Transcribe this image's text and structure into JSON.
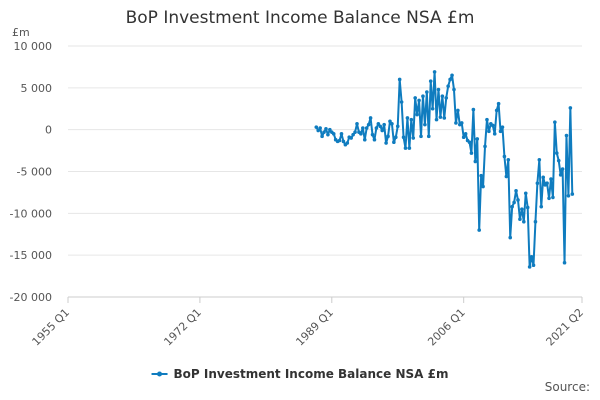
{
  "chart_data": {
    "type": "line",
    "title": "BoP Investment Income Balance NSA £m",
    "unit": "£m",
    "legend_position": "bottom",
    "ylim": [
      -20000,
      10000
    ],
    "y_ticks": [
      {
        "value": 10000,
        "label": "10 000"
      },
      {
        "value": 5000,
        "label": "5 000"
      },
      {
        "value": 0,
        "label": "0"
      },
      {
        "value": -5000,
        "label": "-5 000"
      },
      {
        "value": -10000,
        "label": "-10 000"
      },
      {
        "value": -15000,
        "label": "-15 000"
      },
      {
        "value": -20000,
        "label": "-20 000"
      }
    ],
    "xlim": [
      "1955 Q1",
      "2021 Q2"
    ],
    "x_ticks": [
      "1955 Q1",
      "1972 Q1",
      "1989 Q1",
      "2006 Q1",
      "2021 Q2"
    ],
    "color": "#0f7cbf",
    "series": [
      {
        "name": "BoP Investment Income Balance NSA £m",
        "points": [
          [
            "1987 Q1",
            300
          ],
          [
            "1987 Q2",
            -100
          ],
          [
            "1987 Q3",
            200
          ],
          [
            "1987 Q4",
            -800
          ],
          [
            "1988 Q1",
            -300
          ],
          [
            "1988 Q2",
            100
          ],
          [
            "1988 Q3",
            -600
          ],
          [
            "1988 Q4",
            0
          ],
          [
            "1989 Q1",
            -300
          ],
          [
            "1989 Q2",
            -500
          ],
          [
            "1989 Q3",
            -1200
          ],
          [
            "1989 Q4",
            -1400
          ],
          [
            "1990 Q1",
            -1300
          ],
          [
            "1990 Q2",
            -500
          ],
          [
            "1990 Q3",
            -1400
          ],
          [
            "1990 Q4",
            -1800
          ],
          [
            "1991 Q1",
            -1600
          ],
          [
            "1991 Q2",
            -900
          ],
          [
            "1991 Q3",
            -1000
          ],
          [
            "1991 Q4",
            -600
          ],
          [
            "1992 Q1",
            -300
          ],
          [
            "1992 Q2",
            700
          ],
          [
            "1992 Q3",
            -300
          ],
          [
            "1992 Q4",
            -500
          ],
          [
            "1993 Q1",
            200
          ],
          [
            "1993 Q2",
            -1200
          ],
          [
            "1993 Q3",
            200
          ],
          [
            "1993 Q4",
            600
          ],
          [
            "1994 Q1",
            1400
          ],
          [
            "1994 Q2",
            -600
          ],
          [
            "1994 Q3",
            -1200
          ],
          [
            "1994 Q4",
            200
          ],
          [
            "1995 Q1",
            700
          ],
          [
            "1995 Q2",
            400
          ],
          [
            "1995 Q3",
            -100
          ],
          [
            "1995 Q4",
            600
          ],
          [
            "1996 Q1",
            -1600
          ],
          [
            "1996 Q2",
            -800
          ],
          [
            "1996 Q3",
            1000
          ],
          [
            "1996 Q4",
            700
          ],
          [
            "1997 Q1",
            -1500
          ],
          [
            "1997 Q2",
            -900
          ],
          [
            "1997 Q3",
            400
          ],
          [
            "1997 Q4",
            6000
          ],
          [
            "1998 Q1",
            3300
          ],
          [
            "1998 Q2",
            -900
          ],
          [
            "1998 Q3",
            -2200
          ],
          [
            "1998 Q4",
            1400
          ],
          [
            "1999 Q1",
            -2200
          ],
          [
            "1999 Q2",
            1200
          ],
          [
            "1999 Q3",
            -1000
          ],
          [
            "1999 Q4",
            3800
          ],
          [
            "2000 Q1",
            1800
          ],
          [
            "2000 Q2",
            3500
          ],
          [
            "2000 Q3",
            -800
          ],
          [
            "2000 Q4",
            4000
          ],
          [
            "2001 Q1",
            600
          ],
          [
            "2001 Q2",
            4500
          ],
          [
            "2001 Q3",
            -800
          ],
          [
            "2001 Q4",
            5800
          ],
          [
            "2002 Q1",
            2500
          ],
          [
            "2002 Q2",
            6900
          ],
          [
            "2002 Q3",
            1200
          ],
          [
            "2002 Q4",
            4800
          ],
          [
            "2003 Q1",
            1500
          ],
          [
            "2003 Q2",
            4000
          ],
          [
            "2003 Q3",
            1400
          ],
          [
            "2003 Q4",
            3800
          ],
          [
            "2004 Q1",
            5200
          ],
          [
            "2004 Q2",
            6000
          ],
          [
            "2004 Q3",
            6500
          ],
          [
            "2004 Q4",
            4800
          ],
          [
            "2005 Q1",
            800
          ],
          [
            "2005 Q2",
            2300
          ],
          [
            "2005 Q3",
            600
          ],
          [
            "2005 Q4",
            800
          ],
          [
            "2006 Q1",
            -900
          ],
          [
            "2006 Q2",
            -500
          ],
          [
            "2006 Q3",
            -1300
          ],
          [
            "2006 Q4",
            -1500
          ],
          [
            "2007 Q1",
            -2800
          ],
          [
            "2007 Q2",
            2400
          ],
          [
            "2007 Q3",
            -3800
          ],
          [
            "2007 Q4",
            -1100
          ],
          [
            "2008 Q1",
            -12000
          ],
          [
            "2008 Q2",
            -5500
          ],
          [
            "2008 Q3",
            -6800
          ],
          [
            "2008 Q4",
            -2000
          ],
          [
            "2009 Q1",
            1200
          ],
          [
            "2009 Q2",
            -200
          ],
          [
            "2009 Q3",
            700
          ],
          [
            "2009 Q4",
            500
          ],
          [
            "2010 Q1",
            -500
          ],
          [
            "2010 Q2",
            2300
          ],
          [
            "2010 Q3",
            3100
          ],
          [
            "2010 Q4",
            -200
          ],
          [
            "2011 Q1",
            300
          ],
          [
            "2011 Q2",
            -3200
          ],
          [
            "2011 Q3",
            -5600
          ],
          [
            "2011 Q4",
            -3600
          ],
          [
            "2012 Q1",
            -12900
          ],
          [
            "2012 Q2",
            -9200
          ],
          [
            "2012 Q3",
            -8700
          ],
          [
            "2012 Q4",
            -7300
          ],
          [
            "2013 Q1",
            -8400
          ],
          [
            "2013 Q2",
            -10700
          ],
          [
            "2013 Q3",
            -9500
          ],
          [
            "2013 Q4",
            -11000
          ],
          [
            "2014 Q1",
            -7600
          ],
          [
            "2014 Q2",
            -9300
          ],
          [
            "2014 Q3",
            -16400
          ],
          [
            "2014 Q4",
            -15200
          ],
          [
            "2015 Q1",
            -16200
          ],
          [
            "2015 Q2",
            -11000
          ],
          [
            "2015 Q3",
            -6400
          ],
          [
            "2015 Q4",
            -3600
          ],
          [
            "2016 Q1",
            -9200
          ],
          [
            "2016 Q2",
            -5700
          ],
          [
            "2016 Q3",
            -6600
          ],
          [
            "2016 Q4",
            -6400
          ],
          [
            "2017 Q1",
            -8200
          ],
          [
            "2017 Q2",
            -5900
          ],
          [
            "2017 Q3",
            -8100
          ],
          [
            "2017 Q4",
            900
          ],
          [
            "2018 Q1",
            -2800
          ],
          [
            "2018 Q2",
            -3700
          ],
          [
            "2018 Q3",
            -5400
          ],
          [
            "2018 Q4",
            -4700
          ],
          [
            "2019 Q1",
            -15900
          ],
          [
            "2019 Q2",
            -700
          ],
          [
            "2019 Q3",
            -7900
          ],
          [
            "2019 Q4",
            2600
          ],
          [
            "2020 Q1",
            -7700
          ]
        ]
      }
    ],
    "source_label": "Source:"
  }
}
